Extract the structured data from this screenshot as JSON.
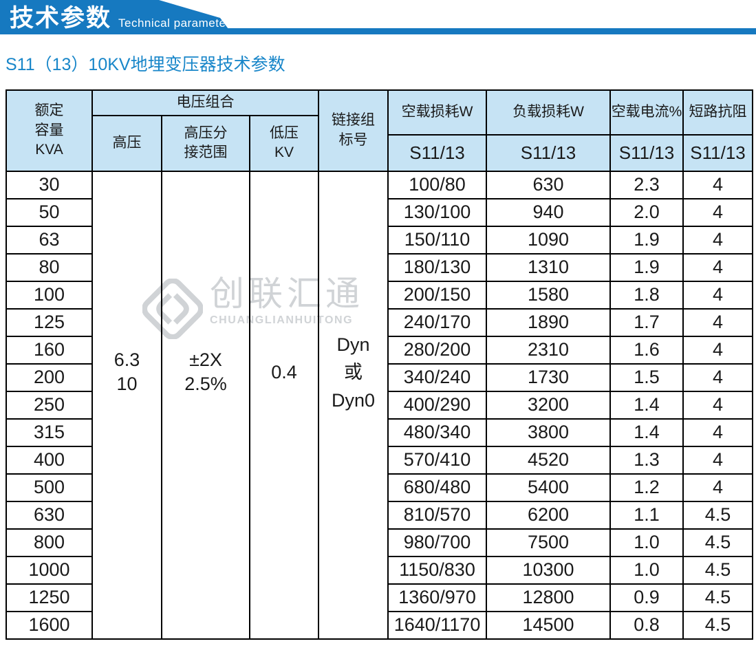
{
  "banner": {
    "title_cn": "技术参数",
    "title_en": "Technical parameter"
  },
  "page_title": "S11（13）10KV地埋变压器技术参数",
  "watermark": {
    "cn": "创联汇通",
    "en": "CHUANGLIANHUITONG"
  },
  "colors": {
    "banner_blue": "#1679c0",
    "subtitle_blue": "#1886c9",
    "header_bg": "#c6e3f4",
    "border": "#000000",
    "watermark_gray": "#d0d3d6"
  },
  "table": {
    "headers": {
      "capacity": "额定\n容量\nKVA",
      "voltage_group": "电压组合",
      "hv": "高压",
      "hv_tap": "高压分\n接范围",
      "lv": "低压\nKV",
      "vector_group": "链接组\n标号",
      "no_load_loss": "空载损耗W",
      "load_loss": "负载损耗W",
      "no_load_current": "空载电流%",
      "impedance": "短路抗阻",
      "model": "S11/13"
    },
    "merged": {
      "hv": "6.3\n10",
      "hv_tap": "±2X\n2.5%",
      "lv": "0.4",
      "vector_group": "Dyn\n或\nDyn0"
    },
    "rows": [
      {
        "kva": "30",
        "no_load_loss": "100/80",
        "load_loss": "630",
        "no_load_current": "2.3",
        "impedance": "4"
      },
      {
        "kva": "50",
        "no_load_loss": "130/100",
        "load_loss": "940",
        "no_load_current": "2.0",
        "impedance": "4"
      },
      {
        "kva": "63",
        "no_load_loss": "150/110",
        "load_loss": "1090",
        "no_load_current": "1.9",
        "impedance": "4"
      },
      {
        "kva": "80",
        "no_load_loss": "180/130",
        "load_loss": "1310",
        "no_load_current": "1.9",
        "impedance": "4"
      },
      {
        "kva": "100",
        "no_load_loss": "200/150",
        "load_loss": "1580",
        "no_load_current": "1.8",
        "impedance": "4"
      },
      {
        "kva": "125",
        "no_load_loss": "240/170",
        "load_loss": "1890",
        "no_load_current": "1.7",
        "impedance": "4"
      },
      {
        "kva": "160",
        "no_load_loss": "280/200",
        "load_loss": "2310",
        "no_load_current": "1.6",
        "impedance": "4"
      },
      {
        "kva": "200",
        "no_load_loss": "340/240",
        "load_loss": "1730",
        "no_load_current": "1.5",
        "impedance": "4"
      },
      {
        "kva": "250",
        "no_load_loss": "400/290",
        "load_loss": "3200",
        "no_load_current": "1.4",
        "impedance": "4"
      },
      {
        "kva": "315",
        "no_load_loss": "480/340",
        "load_loss": "3800",
        "no_load_current": "1.4",
        "impedance": "4"
      },
      {
        "kva": "400",
        "no_load_loss": "570/410",
        "load_loss": "4520",
        "no_load_current": "1.3",
        "impedance": "4"
      },
      {
        "kva": "500",
        "no_load_loss": "680/480",
        "load_loss": "5400",
        "no_load_current": "1.2",
        "impedance": "4"
      },
      {
        "kva": "630",
        "no_load_loss": "810/570",
        "load_loss": "6200",
        "no_load_current": "1.1",
        "impedance": "4.5"
      },
      {
        "kva": "800",
        "no_load_loss": "980/700",
        "load_loss": "7500",
        "no_load_current": "1.0",
        "impedance": "4.5"
      },
      {
        "kva": "1000",
        "no_load_loss": "1150/830",
        "load_loss": "10300",
        "no_load_current": "1.0",
        "impedance": "4.5"
      },
      {
        "kva": "1250",
        "no_load_loss": "1360/970",
        "load_loss": "12800",
        "no_load_current": "0.9",
        "impedance": "4.5"
      },
      {
        "kva": "1600",
        "no_load_loss": "1640/1170",
        "load_loss": "14500",
        "no_load_current": "0.8",
        "impedance": "4.5"
      }
    ]
  }
}
